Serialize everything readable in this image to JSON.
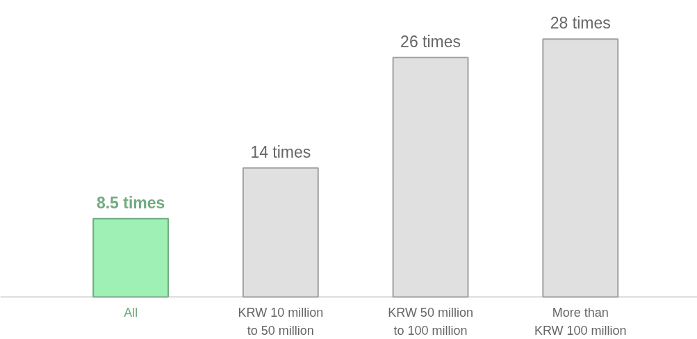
{
  "chart_data": {
    "type": "bar",
    "categories": [
      "All",
      "KRW 10 million\nto 50 million",
      "KRW 50 million\nto 100 million",
      "More than\nKRW 100 million"
    ],
    "values": [
      8.5,
      14,
      26,
      28
    ],
    "colors": [
      "#9ef0b4",
      "#e0e0e0",
      "#e0e0e0",
      "#e0e0e0"
    ],
    "value_labels": [
      "8.5 times",
      "14 times",
      "26 times",
      "28 times"
    ],
    "grid": false
  }
}
